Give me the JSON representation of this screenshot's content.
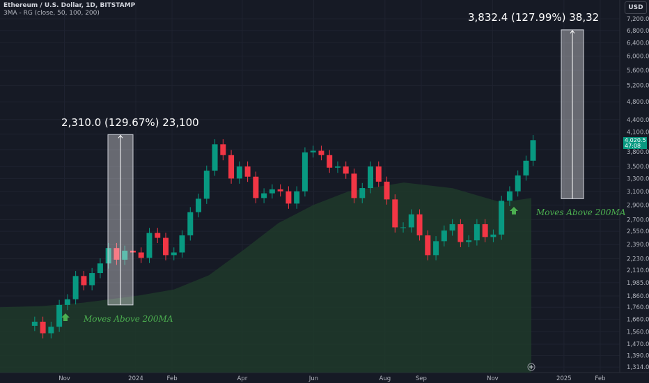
{
  "header": {
    "symbol": "Ethereum / U.S. Dollar, 1D, BITSTAMP",
    "indicator": "3MA - RG (close, 50, 100, 200)"
  },
  "currency_button": "USD",
  "price_tag": {
    "price": "4,020.5",
    "countdown": "47:08",
    "color": "#089981"
  },
  "measure_labels": [
    "2,310.0 (129.67%) 23,100",
    "3,832.4 (127.99%) 38,32"
  ],
  "annotations": [
    "Moves Above 200MA",
    "Moves Above 200MA"
  ],
  "chart_data": {
    "type": "candlestick",
    "y_scale": "log",
    "grid": true,
    "colors": {
      "up": "#089981",
      "down": "#f23645",
      "ma_area": "#1e3a2a",
      "background": "#161a25"
    },
    "y_ticks": [
      "7,200.0",
      "6,800.0",
      "6,400.0",
      "6,000.0",
      "5,600.0",
      "5,200.0",
      "4,800.0",
      "4,400.0",
      "4,100.0",
      "3,800.0",
      "3,500.0",
      "3,300.0",
      "3,100.0",
      "2,900.0",
      "2,700.0",
      "2,550.0",
      "2,390.0",
      "2,230.0",
      "2,110.0",
      "1,985.0",
      "1,860.0",
      "1,760.0",
      "1,660.0",
      "1,560.0",
      "1,470.0",
      "1,390.0",
      "1,314.0"
    ],
    "x_ticks": [
      "Nov",
      "2024",
      "Feb",
      "Apr",
      "Jun",
      "Aug",
      "Sep",
      "Nov",
      "2025",
      "Feb"
    ],
    "weeks": [
      "2023-10-06",
      "2023-10-13",
      "2023-10-20",
      "2023-10-27",
      "2023-11-03",
      "2023-11-10",
      "2023-11-17",
      "2023-11-24",
      "2023-12-01",
      "2023-12-08",
      "2023-12-15",
      "2023-12-22",
      "2023-12-29",
      "2024-01-05",
      "2024-01-12",
      "2024-01-19",
      "2024-01-26",
      "2024-02-02",
      "2024-02-09",
      "2024-02-16",
      "2024-02-23",
      "2024-03-01",
      "2024-03-08",
      "2024-03-15",
      "2024-03-22",
      "2024-03-29",
      "2024-04-05",
      "2024-04-12",
      "2024-04-19",
      "2024-04-26",
      "2024-05-03",
      "2024-05-10",
      "2024-05-17",
      "2024-05-24",
      "2024-05-31",
      "2024-06-07",
      "2024-06-14",
      "2024-06-21",
      "2024-06-28",
      "2024-07-05",
      "2024-07-12",
      "2024-07-19",
      "2024-07-26",
      "2024-08-02",
      "2024-08-09",
      "2024-08-16",
      "2024-08-23",
      "2024-08-30",
      "2024-09-06",
      "2024-09-13",
      "2024-09-20",
      "2024-09-27",
      "2024-10-04",
      "2024-10-11",
      "2024-10-18",
      "2024-10-25",
      "2024-11-01",
      "2024-11-08",
      "2024-11-15",
      "2024-11-22",
      "2024-11-29",
      "2024-12-05"
    ],
    "closes": [
      1640,
      1550,
      1600,
      1780,
      1830,
      2050,
      1960,
      2080,
      2180,
      2350,
      2220,
      2320,
      2300,
      2240,
      2530,
      2470,
      2270,
      2300,
      2500,
      2800,
      2990,
      3430,
      3900,
      3700,
      3300,
      3500,
      3330,
      3000,
      3070,
      3130,
      3100,
      2920,
      3100,
      3750,
      3780,
      3700,
      3480,
      3500,
      3380,
      3000,
      3150,
      3500,
      3250,
      2980,
      2600,
      2600,
      2770,
      2500,
      2270,
      2430,
      2560,
      2640,
      2420,
      2440,
      2640,
      2480,
      2510,
      2960,
      3100,
      3350,
      3600,
      3980
    ],
    "ma200": [
      [
        0,
        1760
      ],
      [
        60,
        1770
      ],
      [
        120,
        1800
      ],
      [
        200,
        1865
      ],
      [
        250,
        1920
      ],
      [
        300,
        2058
      ],
      [
        350,
        2330
      ],
      [
        400,
        2656
      ],
      [
        450,
        2900
      ],
      [
        500,
        3098
      ],
      [
        580,
        3236
      ],
      [
        650,
        3148
      ],
      [
        720,
        2937
      ],
      [
        763,
        3000
      ]
    ],
    "measures": [
      {
        "from": 1780,
        "to": 4090,
        "change": "2,310.0 (129.67%)"
      },
      {
        "from": 2990,
        "to": 6822,
        "change": "3,832.4 (127.99%)"
      }
    ]
  }
}
